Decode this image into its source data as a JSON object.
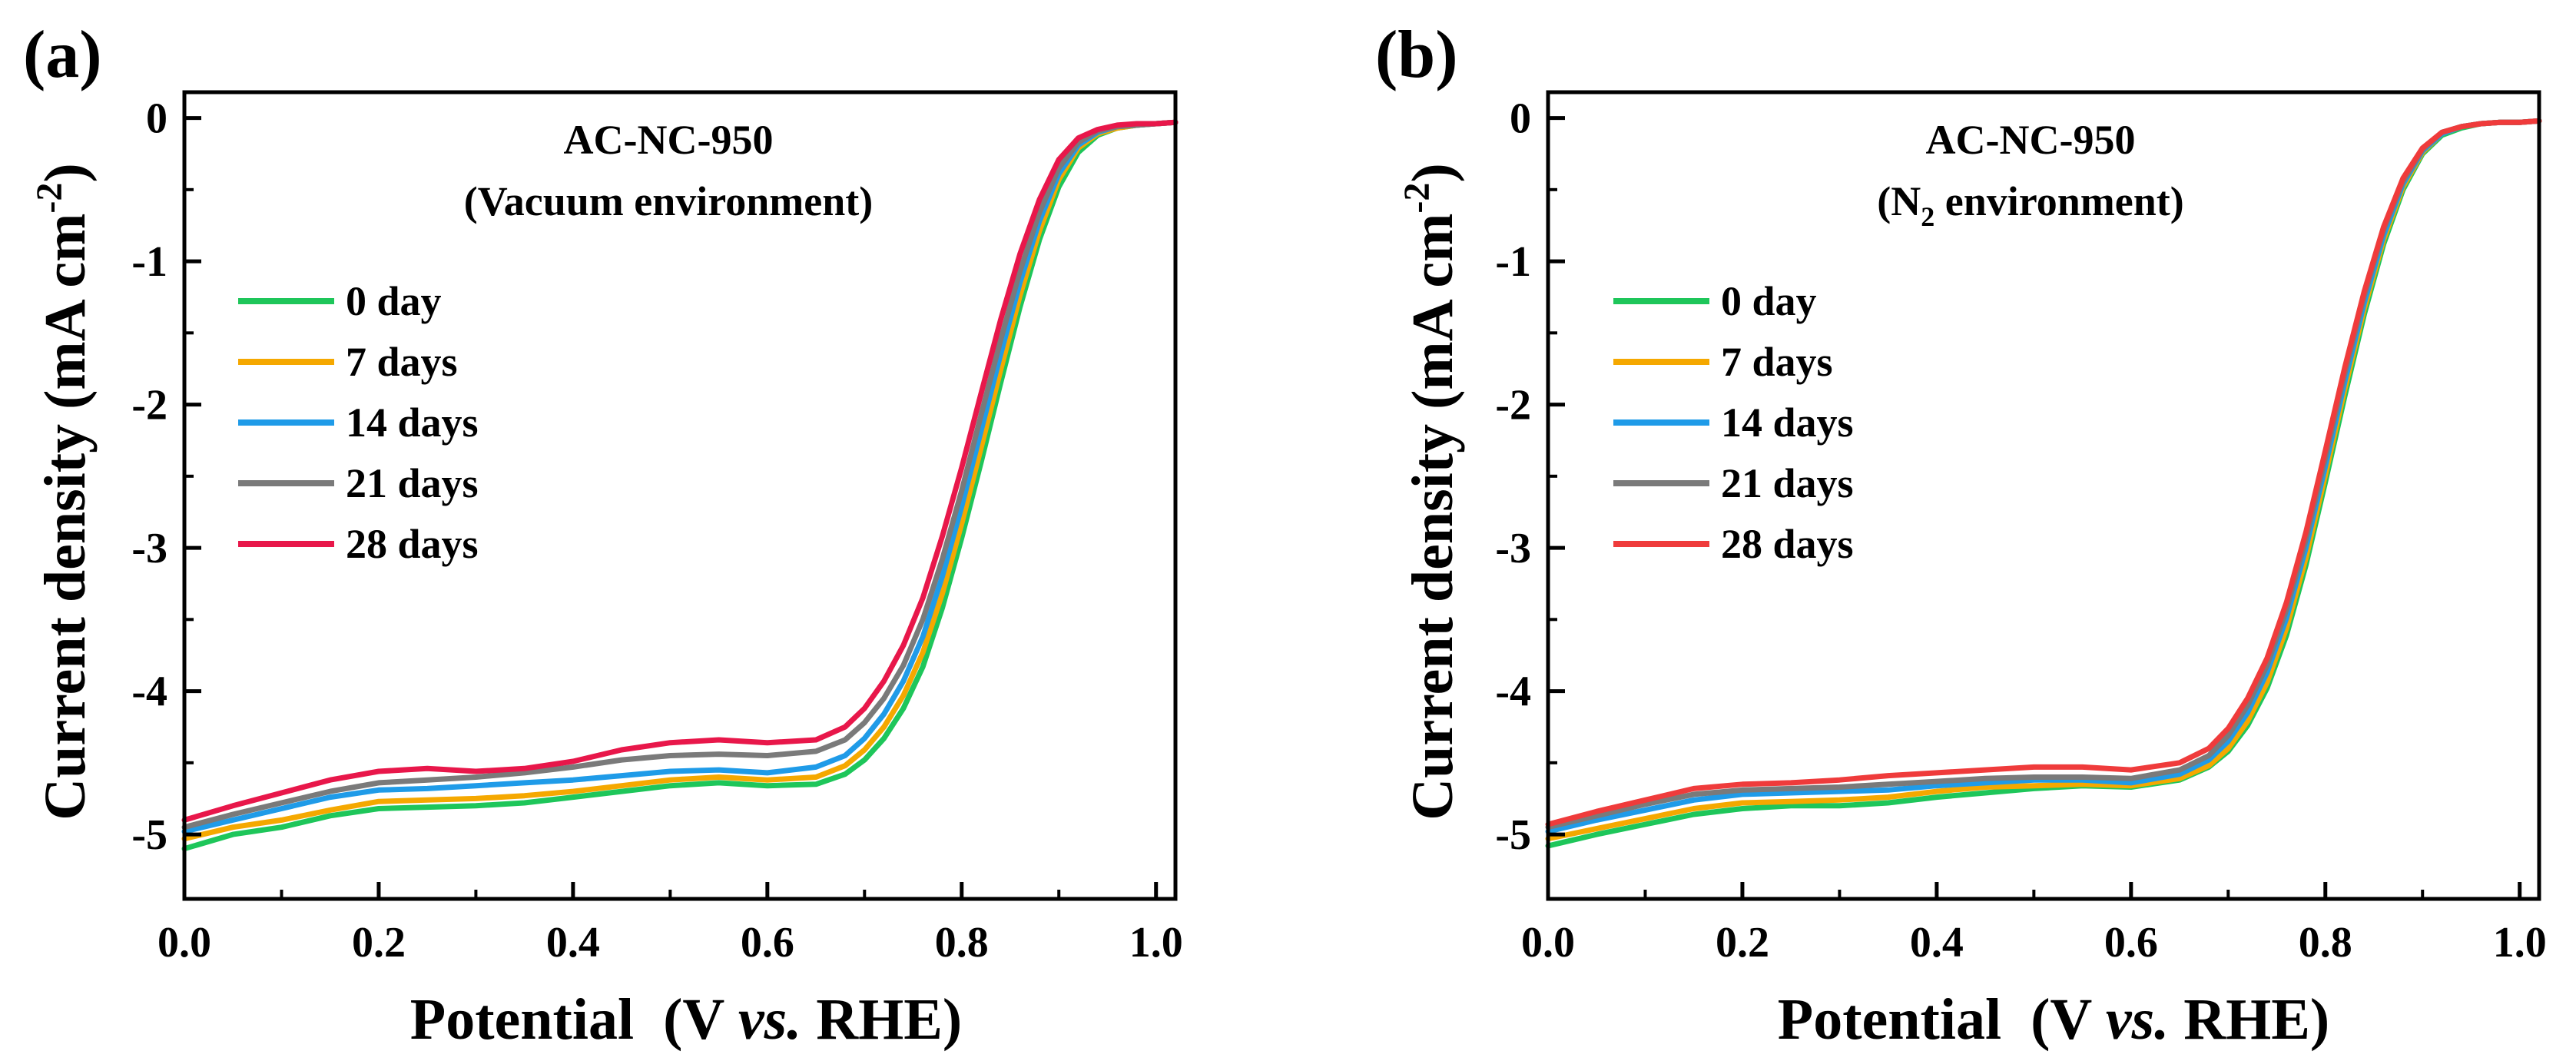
{
  "chart_data": [
    {
      "type": "line",
      "panel_label": "(a)",
      "title": "AC-NC-950",
      "subtitle": "(Vacuum environment)",
      "xlabel_prefix": "Potential  (V ",
      "xlabel_vs": "vs.",
      "xlabel_suffix": " RHE)",
      "ylabel": "Current density (mA cm",
      "ylabel_sup": "-2",
      "ylabel_close": ")",
      "xlim": [
        0.0,
        1.02
      ],
      "ylim": [
        -5.45,
        0.18
      ],
      "xticks": [
        0.0,
        0.2,
        0.4,
        0.6,
        0.8,
        1.0
      ],
      "xtick_labels": [
        "0.0",
        "0.2",
        "0.4",
        "0.6",
        "0.8",
        "1.0"
      ],
      "yticks": [
        0,
        -1,
        -2,
        -3,
        -4,
        -5
      ],
      "ytick_labels": [
        "0",
        "-1",
        "-2",
        "-3",
        "-4",
        "-5"
      ],
      "legend_position": "left",
      "series": [
        {
          "name": "0 day",
          "color": "#1ec65a",
          "x": [
            0.0,
            0.05,
            0.1,
            0.15,
            0.2,
            0.25,
            0.3,
            0.35,
            0.4,
            0.45,
            0.5,
            0.55,
            0.6,
            0.65,
            0.68,
            0.7,
            0.72,
            0.74,
            0.76,
            0.78,
            0.8,
            0.82,
            0.84,
            0.86,
            0.88,
            0.9,
            0.92,
            0.94,
            0.96,
            0.98,
            1.0,
            1.02
          ],
          "y": [
            -5.1,
            -5.0,
            -4.95,
            -4.87,
            -4.82,
            -4.81,
            -4.8,
            -4.78,
            -4.74,
            -4.7,
            -4.66,
            -4.64,
            -4.66,
            -4.65,
            -4.58,
            -4.48,
            -4.33,
            -4.12,
            -3.83,
            -3.42,
            -2.93,
            -2.4,
            -1.85,
            -1.32,
            -0.85,
            -0.48,
            -0.24,
            -0.12,
            -0.07,
            -0.05,
            -0.04,
            -0.03
          ]
        },
        {
          "name": "7 days",
          "color": "#f5a800",
          "x": [
            0.0,
            0.05,
            0.1,
            0.15,
            0.2,
            0.25,
            0.3,
            0.35,
            0.4,
            0.45,
            0.5,
            0.55,
            0.6,
            0.65,
            0.68,
            0.7,
            0.72,
            0.74,
            0.76,
            0.78,
            0.8,
            0.82,
            0.84,
            0.86,
            0.88,
            0.9,
            0.92,
            0.94,
            0.96,
            0.98,
            1.0,
            1.02
          ],
          "y": [
            -5.03,
            -4.95,
            -4.9,
            -4.83,
            -4.77,
            -4.76,
            -4.75,
            -4.73,
            -4.7,
            -4.66,
            -4.62,
            -4.6,
            -4.62,
            -4.6,
            -4.52,
            -4.41,
            -4.25,
            -4.03,
            -3.73,
            -3.32,
            -2.83,
            -2.3,
            -1.76,
            -1.24,
            -0.79,
            -0.43,
            -0.21,
            -0.11,
            -0.07,
            -0.05,
            -0.04,
            -0.03
          ]
        },
        {
          "name": "14 days",
          "color": "#1f9be8",
          "x": [
            0.0,
            0.05,
            0.1,
            0.15,
            0.2,
            0.25,
            0.3,
            0.35,
            0.4,
            0.45,
            0.5,
            0.55,
            0.6,
            0.65,
            0.68,
            0.7,
            0.72,
            0.74,
            0.76,
            0.78,
            0.8,
            0.82,
            0.84,
            0.86,
            0.88,
            0.9,
            0.92,
            0.94,
            0.96,
            0.98,
            1.0,
            1.02
          ],
          "y": [
            -4.98,
            -4.9,
            -4.82,
            -4.74,
            -4.69,
            -4.68,
            -4.66,
            -4.64,
            -4.62,
            -4.59,
            -4.56,
            -4.55,
            -4.57,
            -4.53,
            -4.45,
            -4.33,
            -4.16,
            -3.93,
            -3.62,
            -3.2,
            -2.71,
            -2.18,
            -1.65,
            -1.15,
            -0.72,
            -0.39,
            -0.19,
            -0.1,
            -0.06,
            -0.05,
            -0.04,
            -0.03
          ]
        },
        {
          "name": "21 days",
          "color": "#7a7a7a",
          "x": [
            0.0,
            0.05,
            0.1,
            0.15,
            0.2,
            0.25,
            0.3,
            0.35,
            0.4,
            0.45,
            0.5,
            0.55,
            0.6,
            0.65,
            0.68,
            0.7,
            0.72,
            0.74,
            0.76,
            0.78,
            0.8,
            0.82,
            0.84,
            0.86,
            0.88,
            0.9,
            0.92,
            0.94,
            0.96,
            0.98,
            1.0,
            1.02
          ],
          "y": [
            -4.95,
            -4.86,
            -4.78,
            -4.7,
            -4.64,
            -4.62,
            -4.6,
            -4.57,
            -4.53,
            -4.48,
            -4.45,
            -4.44,
            -4.45,
            -4.42,
            -4.34,
            -4.22,
            -4.05,
            -3.82,
            -3.5,
            -3.08,
            -2.6,
            -2.07,
            -1.55,
            -1.07,
            -0.66,
            -0.35,
            -0.17,
            -0.09,
            -0.06,
            -0.05,
            -0.04,
            -0.03
          ]
        },
        {
          "name": "28 days",
          "color": "#e8174a",
          "x": [
            0.0,
            0.05,
            0.1,
            0.15,
            0.2,
            0.25,
            0.3,
            0.35,
            0.4,
            0.45,
            0.5,
            0.55,
            0.6,
            0.65,
            0.68,
            0.7,
            0.72,
            0.74,
            0.76,
            0.78,
            0.8,
            0.82,
            0.84,
            0.86,
            0.88,
            0.9,
            0.92,
            0.94,
            0.96,
            0.98,
            1.0,
            1.02
          ],
          "y": [
            -4.9,
            -4.8,
            -4.71,
            -4.62,
            -4.56,
            -4.54,
            -4.56,
            -4.54,
            -4.49,
            -4.41,
            -4.36,
            -4.34,
            -4.36,
            -4.34,
            -4.25,
            -4.12,
            -3.93,
            -3.68,
            -3.35,
            -2.92,
            -2.44,
            -1.92,
            -1.41,
            -0.95,
            -0.57,
            -0.29,
            -0.14,
            -0.08,
            -0.05,
            -0.04,
            -0.04,
            -0.03
          ]
        }
      ]
    },
    {
      "type": "line",
      "panel_label": "(b)",
      "title": "AC-NC-950",
      "subtitle_prefix": "(N",
      "subtitle_sub": "2",
      "subtitle_suffix": " environment)",
      "xlabel_prefix": "Potential  (V ",
      "xlabel_vs": "vs.",
      "xlabel_suffix": " RHE)",
      "ylabel": "Current density (mA cm",
      "ylabel_sup": "-2",
      "ylabel_close": ")",
      "xlim": [
        0.0,
        1.02
      ],
      "ylim": [
        -5.45,
        0.18
      ],
      "xticks": [
        0.0,
        0.2,
        0.4,
        0.6,
        0.8,
        1.0
      ],
      "xtick_labels": [
        "0.0",
        "0.2",
        "0.4",
        "0.6",
        "0.8",
        "1.0"
      ],
      "yticks": [
        0,
        -1,
        -2,
        -3,
        -4,
        -5
      ],
      "ytick_labels": [
        "0",
        "-1",
        "-2",
        "-3",
        "-4",
        "-5"
      ],
      "legend_position": "left",
      "series": [
        {
          "name": "0 day",
          "color": "#1ec65a",
          "x": [
            0.0,
            0.05,
            0.1,
            0.15,
            0.2,
            0.25,
            0.3,
            0.35,
            0.4,
            0.45,
            0.5,
            0.55,
            0.6,
            0.65,
            0.68,
            0.7,
            0.72,
            0.74,
            0.76,
            0.78,
            0.8,
            0.82,
            0.84,
            0.86,
            0.88,
            0.9,
            0.92,
            0.94,
            0.96,
            0.98,
            1.0,
            1.02
          ],
          "y": [
            -5.08,
            -5.0,
            -4.93,
            -4.86,
            -4.82,
            -4.8,
            -4.8,
            -4.78,
            -4.74,
            -4.71,
            -4.68,
            -4.66,
            -4.67,
            -4.62,
            -4.53,
            -4.42,
            -4.24,
            -3.98,
            -3.61,
            -3.12,
            -2.54,
            -1.94,
            -1.37,
            -0.88,
            -0.5,
            -0.25,
            -0.12,
            -0.07,
            -0.04,
            -0.03,
            -0.03,
            -0.02
          ]
        },
        {
          "name": "7 days",
          "color": "#f5a800",
          "x": [
            0.0,
            0.05,
            0.1,
            0.15,
            0.2,
            0.25,
            0.3,
            0.35,
            0.4,
            0.45,
            0.5,
            0.55,
            0.6,
            0.65,
            0.68,
            0.7,
            0.72,
            0.74,
            0.76,
            0.78,
            0.8,
            0.82,
            0.84,
            0.86,
            0.88,
            0.9,
            0.92,
            0.94,
            0.96,
            0.98,
            1.0,
            1.02
          ],
          "y": [
            -5.03,
            -4.96,
            -4.89,
            -4.82,
            -4.78,
            -4.77,
            -4.76,
            -4.74,
            -4.7,
            -4.67,
            -4.66,
            -4.65,
            -4.66,
            -4.61,
            -4.52,
            -4.4,
            -4.21,
            -3.94,
            -3.56,
            -3.07,
            -2.49,
            -1.89,
            -1.33,
            -0.85,
            -0.48,
            -0.24,
            -0.11,
            -0.06,
            -0.04,
            -0.03,
            -0.03,
            -0.02
          ]
        },
        {
          "name": "14 days",
          "color": "#1f9be8",
          "x": [
            0.0,
            0.05,
            0.1,
            0.15,
            0.2,
            0.25,
            0.3,
            0.35,
            0.4,
            0.45,
            0.5,
            0.55,
            0.6,
            0.65,
            0.68,
            0.7,
            0.72,
            0.74,
            0.76,
            0.78,
            0.8,
            0.82,
            0.84,
            0.86,
            0.88,
            0.9,
            0.92,
            0.94,
            0.96,
            0.98,
            1.0,
            1.02
          ],
          "y": [
            -4.98,
            -4.9,
            -4.83,
            -4.76,
            -4.72,
            -4.71,
            -4.7,
            -4.69,
            -4.66,
            -4.64,
            -4.62,
            -4.62,
            -4.64,
            -4.58,
            -4.48,
            -4.35,
            -4.15,
            -3.87,
            -3.49,
            -3.0,
            -2.43,
            -1.84,
            -1.29,
            -0.82,
            -0.46,
            -0.23,
            -0.11,
            -0.06,
            -0.04,
            -0.03,
            -0.03,
            -0.02
          ]
        },
        {
          "name": "21 days",
          "color": "#7a7a7a",
          "x": [
            0.0,
            0.05,
            0.1,
            0.15,
            0.2,
            0.25,
            0.3,
            0.35,
            0.4,
            0.45,
            0.5,
            0.55,
            0.6,
            0.65,
            0.68,
            0.7,
            0.72,
            0.74,
            0.76,
            0.78,
            0.8,
            0.82,
            0.84,
            0.86,
            0.88,
            0.9,
            0.92,
            0.94,
            0.96,
            0.98,
            1.0,
            1.02
          ],
          "y": [
            -4.95,
            -4.87,
            -4.79,
            -4.72,
            -4.69,
            -4.68,
            -4.67,
            -4.65,
            -4.63,
            -4.61,
            -4.6,
            -4.6,
            -4.61,
            -4.55,
            -4.45,
            -4.31,
            -4.1,
            -3.82,
            -3.43,
            -2.94,
            -2.37,
            -1.78,
            -1.24,
            -0.78,
            -0.44,
            -0.22,
            -0.1,
            -0.06,
            -0.04,
            -0.03,
            -0.03,
            -0.02
          ]
        },
        {
          "name": "28 days",
          "color": "#ef3b3b",
          "x": [
            0.0,
            0.05,
            0.1,
            0.15,
            0.2,
            0.25,
            0.3,
            0.35,
            0.4,
            0.45,
            0.5,
            0.55,
            0.6,
            0.65,
            0.68,
            0.7,
            0.72,
            0.74,
            0.76,
            0.78,
            0.8,
            0.82,
            0.84,
            0.86,
            0.88,
            0.9,
            0.92,
            0.94,
            0.96,
            0.98,
            1.0,
            1.02
          ],
          "y": [
            -4.93,
            -4.84,
            -4.76,
            -4.68,
            -4.65,
            -4.64,
            -4.62,
            -4.59,
            -4.57,
            -4.55,
            -4.53,
            -4.53,
            -4.55,
            -4.5,
            -4.4,
            -4.26,
            -4.05,
            -3.77,
            -3.38,
            -2.89,
            -2.32,
            -1.74,
            -1.21,
            -0.76,
            -0.42,
            -0.21,
            -0.1,
            -0.06,
            -0.04,
            -0.03,
            -0.03,
            -0.02
          ]
        }
      ]
    }
  ]
}
